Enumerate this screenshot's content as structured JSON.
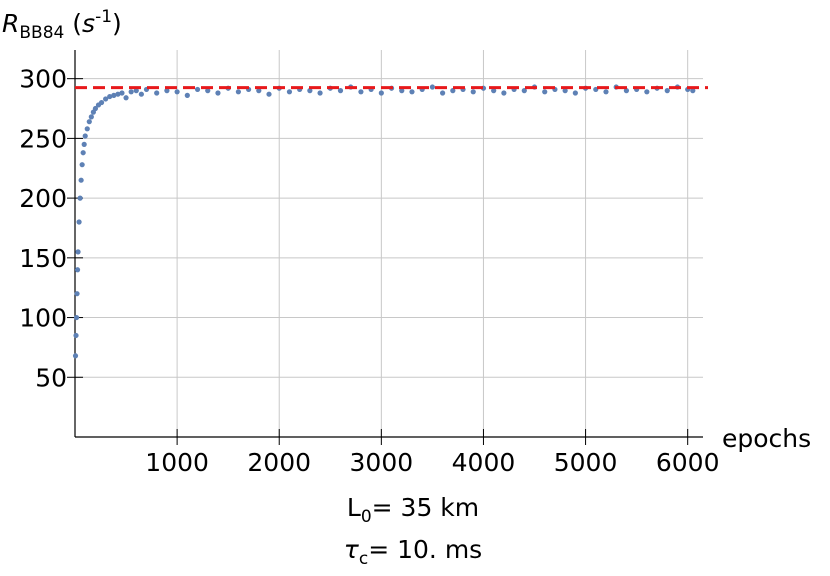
{
  "chart_data": {
    "type": "scatter",
    "ylabel": [
      "R",
      "BB84",
      " (",
      "s",
      "-1",
      ")"
    ],
    "xlabel": "epochs",
    "annotations": [
      [
        "L",
        "0",
        "= 35 km"
      ],
      [
        "τ",
        "c",
        "= 10. ms"
      ]
    ],
    "xlim": [
      0,
      6150
    ],
    "ylim": [
      0,
      324
    ],
    "xticks": [
      1000,
      2000,
      3000,
      4000,
      5000,
      6000
    ],
    "yticks": [
      50,
      100,
      150,
      200,
      250,
      300
    ],
    "grid": true,
    "reference_line": {
      "value": 292.5,
      "color": "#e8191b"
    },
    "series": [
      {
        "color": "#5e81b5",
        "x": [
          5,
          10,
          15,
          20,
          25,
          30,
          40,
          50,
          60,
          70,
          80,
          90,
          100,
          120,
          140,
          160,
          180,
          200,
          230,
          260,
          300,
          340,
          380,
          420,
          460,
          500,
          550,
          600,
          650,
          700,
          800,
          900,
          1000,
          1100,
          1200,
          1300,
          1400,
          1500,
          1600,
          1700,
          1800,
          1900,
          2000,
          2100,
          2200,
          2300,
          2400,
          2500,
          2600,
          2700,
          2800,
          2900,
          3000,
          3100,
          3200,
          3300,
          3400,
          3500,
          3600,
          3700,
          3800,
          3900,
          4000,
          4100,
          4200,
          4300,
          4400,
          4500,
          4600,
          4700,
          4800,
          4900,
          5000,
          5100,
          5200,
          5300,
          5400,
          5500,
          5600,
          5700,
          5800,
          5900,
          6000,
          6050
        ],
        "values": [
          68,
          85,
          100,
          120,
          140,
          155,
          180,
          200,
          215,
          228,
          238,
          245,
          252,
          258,
          264,
          268,
          272,
          275,
          278,
          280,
          283,
          285,
          286,
          287,
          288,
          284,
          289,
          290,
          287,
          291,
          288,
          290,
          289,
          286,
          291,
          290,
          288,
          292,
          289,
          291,
          290,
          287,
          292,
          289,
          291,
          290,
          288,
          292,
          290,
          293,
          289,
          291,
          288,
          292,
          290,
          289,
          291,
          293,
          288,
          290,
          291,
          289,
          292,
          290,
          288,
          291,
          290,
          293,
          289,
          291,
          290,
          288,
          292,
          291,
          289,
          293,
          290,
          291,
          289,
          292,
          290,
          293,
          291,
          290
        ]
      }
    ]
  }
}
